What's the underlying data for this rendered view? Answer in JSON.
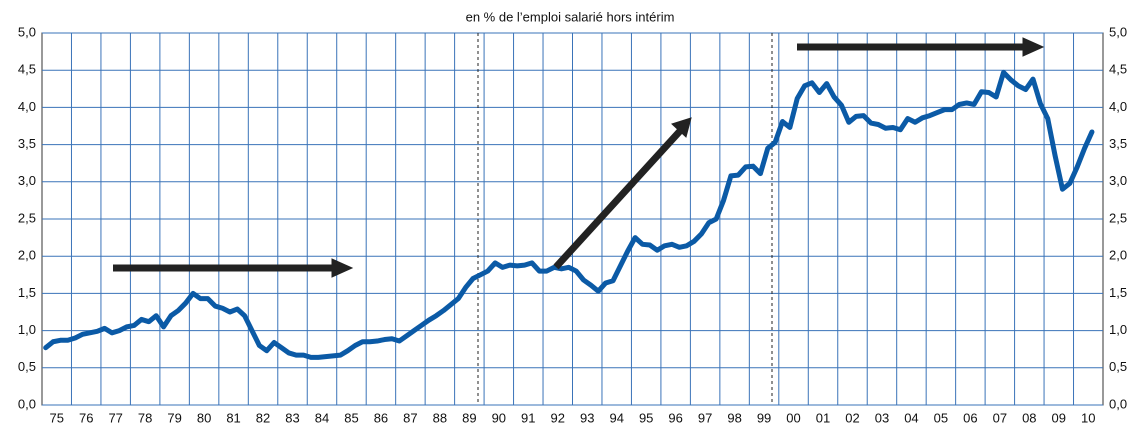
{
  "chart_data": {
    "type": "line",
    "title": "en % de l’emploi salarié hors intérim",
    "categories": [
      "75",
      null,
      null,
      null,
      "76",
      null,
      null,
      null,
      "77",
      null,
      null,
      null,
      "78",
      null,
      null,
      null,
      "79",
      null,
      null,
      null,
      "80",
      null,
      null,
      null,
      "81",
      null,
      null,
      null,
      "82",
      null,
      null,
      null,
      "83",
      null,
      null,
      null,
      "84",
      null,
      null,
      null,
      "85",
      null,
      null,
      null,
      "86",
      null,
      null,
      null,
      "87",
      null,
      null,
      null,
      "88",
      null,
      null,
      null,
      "89",
      null,
      null,
      null,
      "90",
      null,
      null,
      null,
      "91",
      null,
      null,
      null,
      "92",
      null,
      null,
      null,
      "93",
      null,
      null,
      null,
      "94",
      null,
      null,
      null,
      "95",
      null,
      null,
      null,
      "96",
      null,
      null,
      null,
      "97",
      null,
      null,
      null,
      "98",
      null,
      null,
      null,
      "99",
      null,
      null,
      null,
      "00",
      null,
      null,
      null,
      "01",
      null,
      null,
      null,
      "02",
      null,
      null,
      null,
      "03",
      null,
      null,
      null,
      "04",
      null,
      null,
      null,
      "05",
      null,
      null,
      null,
      "06",
      null,
      null,
      null,
      "07",
      null,
      null,
      null,
      "08",
      null,
      null,
      null,
      "09",
      null,
      null,
      null,
      "10",
      null,
      null
    ],
    "values": [
      0.77,
      0.85,
      0.87,
      0.87,
      0.9,
      0.95,
      0.97,
      0.99,
      1.03,
      0.97,
      1.0,
      1.05,
      1.07,
      1.15,
      1.12,
      1.2,
      1.05,
      1.2,
      1.27,
      1.37,
      1.5,
      1.43,
      1.43,
      1.33,
      1.3,
      1.25,
      1.29,
      1.2,
      1.0,
      0.8,
      0.73,
      0.84,
      0.77,
      0.7,
      0.67,
      0.67,
      0.64,
      0.64,
      0.65,
      0.66,
      0.67,
      0.73,
      0.8,
      0.85,
      0.85,
      0.86,
      0.88,
      0.89,
      0.86,
      0.93,
      1.0,
      1.07,
      1.14,
      1.2,
      1.27,
      1.35,
      1.43,
      1.58,
      1.7,
      1.75,
      1.8,
      1.91,
      1.85,
      1.88,
      1.87,
      1.88,
      1.91,
      1.8,
      1.8,
      1.85,
      1.83,
      1.85,
      1.8,
      1.68,
      1.61,
      1.53,
      1.64,
      1.67,
      1.87,
      2.07,
      2.25,
      2.16,
      2.15,
      2.08,
      2.14,
      2.16,
      2.12,
      2.14,
      2.2,
      2.3,
      2.45,
      2.5,
      2.75,
      3.08,
      3.09,
      3.2,
      3.21,
      3.11,
      3.45,
      3.53,
      3.81,
      3.73,
      4.12,
      4.29,
      4.33,
      4.2,
      4.32,
      4.14,
      4.03,
      3.8,
      3.88,
      3.89,
      3.79,
      3.77,
      3.72,
      3.73,
      3.7,
      3.85,
      3.8,
      3.86,
      3.89,
      3.93,
      3.97,
      3.97,
      4.04,
      4.06,
      4.04,
      4.21,
      4.2,
      4.14,
      4.47,
      4.37,
      4.29,
      4.24,
      4.38,
      4.05,
      3.85,
      3.35,
      2.9,
      2.98,
      3.2,
      3.45,
      3.67
    ],
    "color": "#0b5aa6",
    "ylim": [
      0,
      5
    ],
    "yticks": [
      {
        "value": 0,
        "label": "0,0"
      },
      {
        "value": 0.5,
        "label": "0,5"
      },
      {
        "value": 1,
        "label": "1,0"
      },
      {
        "value": 1.5,
        "label": "1,5"
      },
      {
        "value": 2,
        "label": "2,0"
      },
      {
        "value": 2.5,
        "label": "2,5"
      },
      {
        "value": 3,
        "label": "3,0"
      },
      {
        "value": 3.5,
        "label": "3,5"
      },
      {
        "value": 4,
        "label": "4,0"
      },
      {
        "value": 4.5,
        "label": "4,5"
      },
      {
        "value": 5,
        "label": "5,0"
      }
    ],
    "y2lim": [
      0,
      5
    ],
    "y2ticks": [
      {
        "value": 0,
        "label": "0,0"
      },
      {
        "value": 0.5,
        "label": "0,5"
      },
      {
        "value": 1,
        "label": "1,0"
      },
      {
        "value": 1.5,
        "label": "1,5"
      },
      {
        "value": 2,
        "label": "2,0"
      },
      {
        "value": 2.5,
        "label": "2,5"
      },
      {
        "value": 3,
        "label": "3,0"
      },
      {
        "value": 3.5,
        "label": "3,5"
      },
      {
        "value": 4,
        "label": "4,0"
      },
      {
        "value": 4.5,
        "label": "4,5"
      },
      {
        "value": 5,
        "label": "5,0"
      }
    ],
    "grid": true,
    "grid_color": "#3a73b8"
  }
}
